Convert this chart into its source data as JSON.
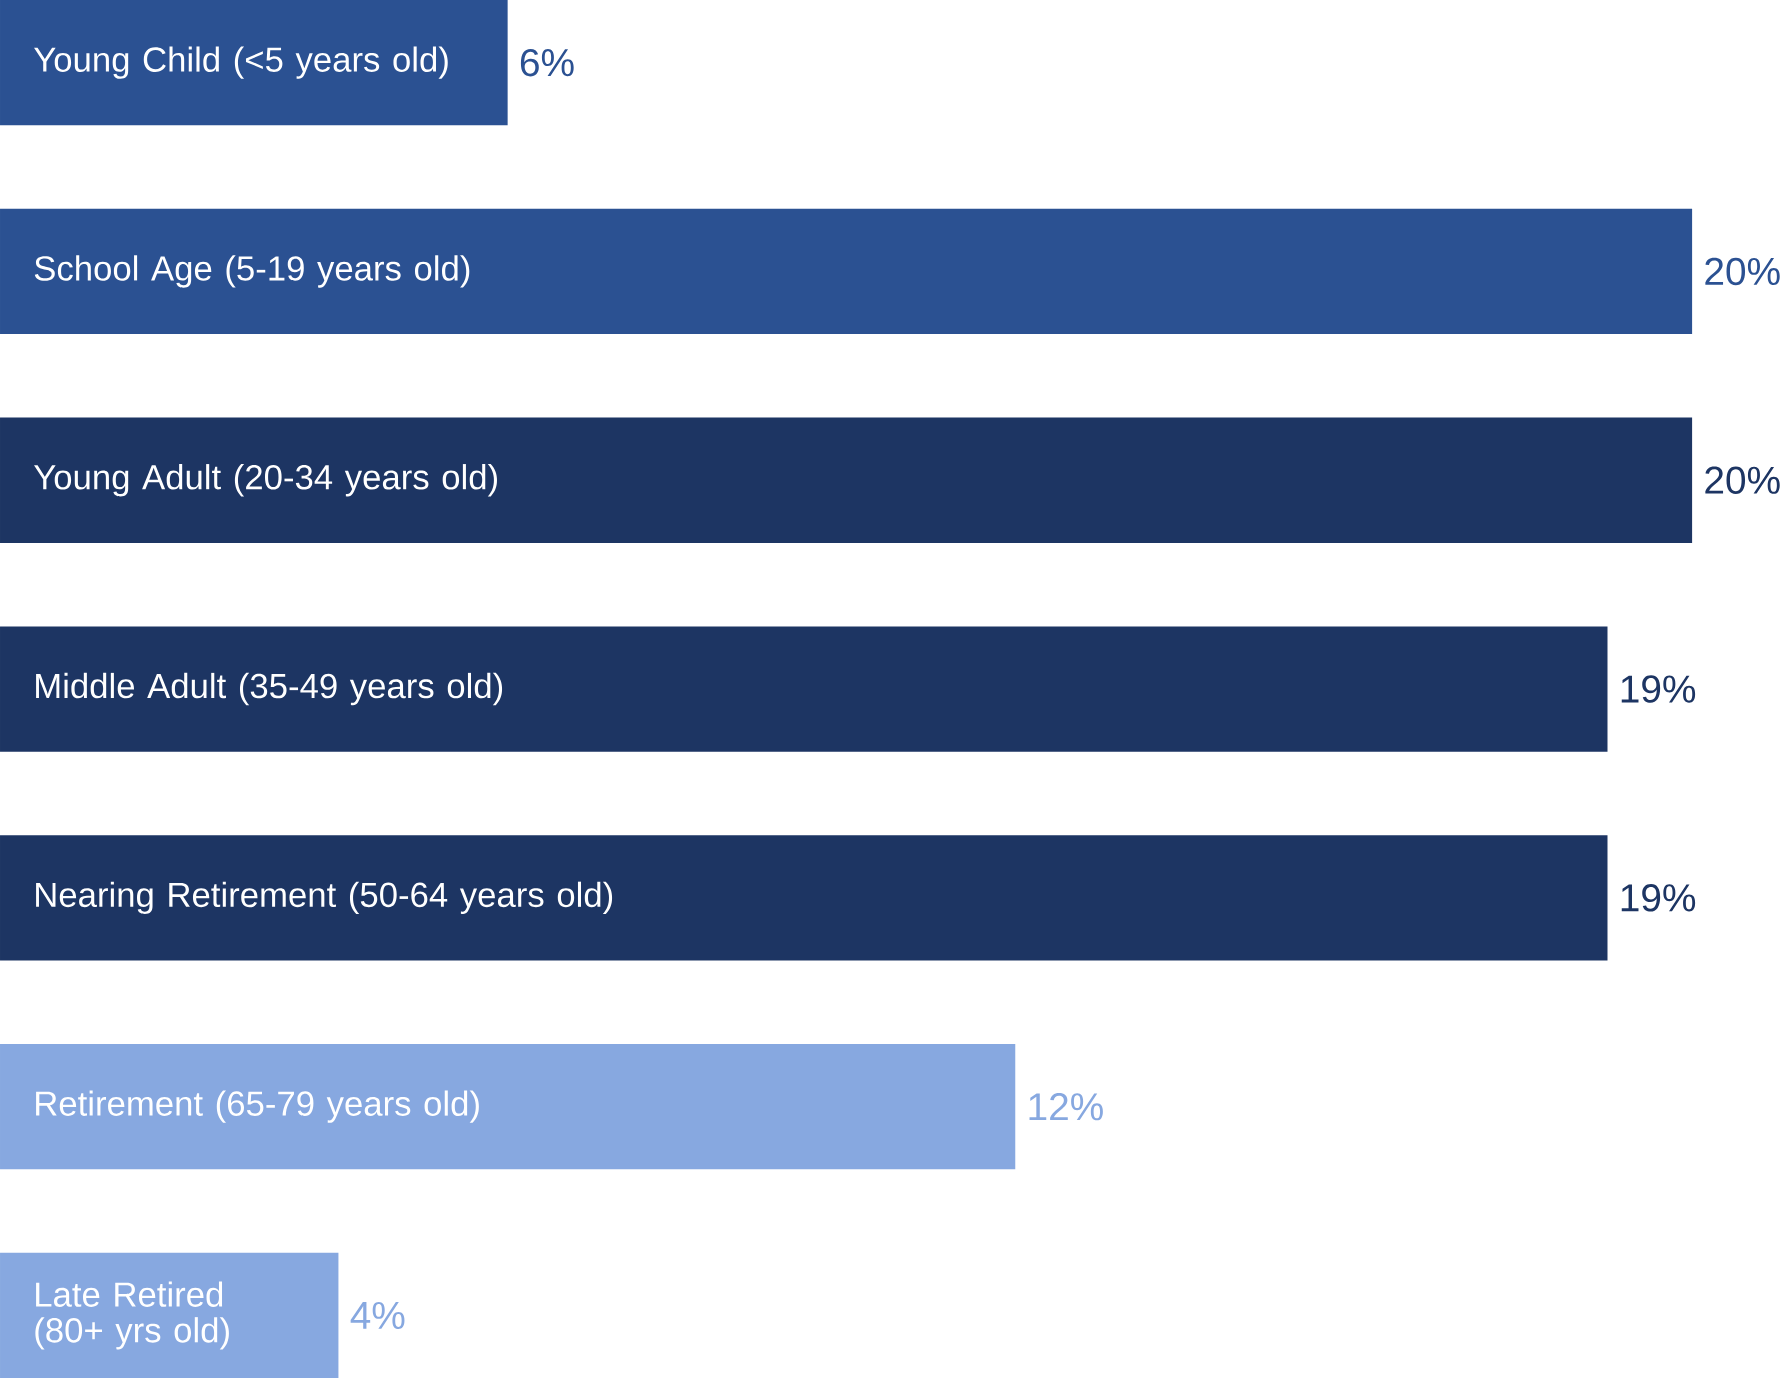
{
  "chart_data": {
    "type": "bar",
    "orientation": "horizontal",
    "categories": [
      "Young Child (<5 years old)",
      "School Age (5-19 years old)",
      "Young Adult (20-34 years old)",
      "Middle Adult (35-49 years old)",
      "Nearing Retirement (50-64 years old)",
      "Retirement (65-79 years old)",
      "Late Retired (80+ yrs old)"
    ],
    "values": [
      6,
      20,
      20,
      19,
      19,
      12,
      4
    ],
    "value_labels": [
      "6%",
      "20%",
      "20%",
      "19%",
      "19%",
      "12%",
      "4%"
    ],
    "colors": [
      "#2b5192",
      "#2b5192",
      "#1d3563",
      "#1d3563",
      "#1d3563",
      "#87a8e0",
      "#87a8e0"
    ],
    "data_labels": false
  }
}
